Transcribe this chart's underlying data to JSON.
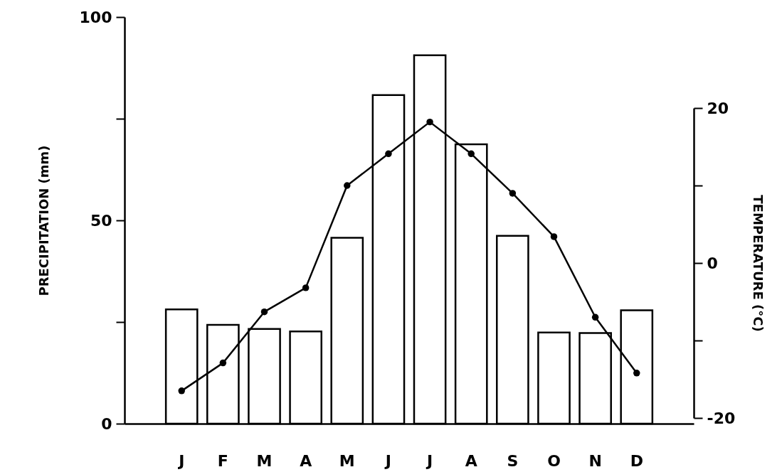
{
  "chart_data": {
    "type": "bar",
    "categories": [
      "J",
      "F",
      "M",
      "A",
      "M",
      "J",
      "J",
      "A",
      "S",
      "O",
      "N",
      "D"
    ],
    "series": [
      {
        "color": "#ffffff",
        "values": [
          28.1,
          24.3,
          23.3,
          22.7,
          45.7,
          80.8,
          90.6,
          68.7,
          46.2,
          22.4,
          22.3,
          27.9
        ]
      },
      {
        "type": "line",
        "axis": "y2",
        "color": "#000000",
        "values": [
          -16.5,
          -12.9,
          -6.3,
          -3.2,
          10,
          14.1,
          18.2,
          14.1,
          9,
          3.4,
          -7,
          -14.2
        ]
      }
    ],
    "ylabel": "PRECIPITATION     (mm)",
    "y2label": "TEMPERATURE     (°C)",
    "ylim": [
      0,
      100
    ],
    "yticks": [
      0,
      {
        "value": 25,
        "label": null
      },
      50,
      {
        "value": 75,
        "label": null
      },
      100
    ],
    "y2lim": [
      -20,
      20
    ],
    "y2ticks": [
      -20,
      {
        "value": -10,
        "label": null
      },
      0,
      {
        "value": 10,
        "label": null
      },
      20
    ],
    "grid": false,
    "marker": "circle",
    "line_style": "solid"
  }
}
